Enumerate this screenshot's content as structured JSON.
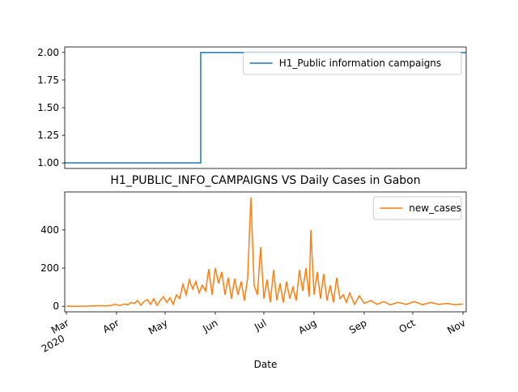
{
  "chart_data": [
    {
      "type": "line",
      "xlim": [
        -1,
        247
      ],
      "ylim": [
        0.95,
        2.05
      ],
      "yticks": [
        {
          "value": 1,
          "label": "1.00"
        },
        {
          "value": 1.25,
          "label": "1.25"
        },
        {
          "value": 1.5,
          "label": "1.50"
        },
        {
          "value": 1.75,
          "label": "1.75"
        },
        {
          "value": 2,
          "label": "2.00"
        }
      ],
      "legend": "upper right",
      "series": [
        {
          "name": "H1_Public information campaigns",
          "color": "#1f77b4",
          "x": [
            -1,
            83,
            83,
            247
          ],
          "values": [
            1,
            1,
            2,
            2
          ]
        }
      ]
    },
    {
      "type": "line",
      "title": "H1_PUBLIC_INFO_CAMPAIGNS VS Daily Cases in Gabon",
      "xlabel": "Date",
      "xlim": [
        -1,
        247
      ],
      "xticks": [
        {
          "value": 0,
          "label": "Mar\n2020"
        },
        {
          "value": 31,
          "label": "Apr"
        },
        {
          "value": 61,
          "label": "May"
        },
        {
          "value": 92,
          "label": "Jun"
        },
        {
          "value": 122,
          "label": "Jul"
        },
        {
          "value": 153,
          "label": "Aug"
        },
        {
          "value": 184,
          "label": "Sep"
        },
        {
          "value": 214,
          "label": "Oct"
        },
        {
          "value": 245,
          "label": "Nov"
        }
      ],
      "ylim": [
        -29,
        599
      ],
      "yticks": [
        0,
        200,
        400
      ],
      "legend": "upper right",
      "series": [
        {
          "name": "new_cases",
          "color": "#ff7f0e",
          "x": [
            0,
            10,
            14,
            20,
            25,
            28,
            30,
            33,
            36,
            38,
            40,
            42,
            44,
            46,
            48,
            50,
            52,
            54,
            56,
            58,
            60,
            62,
            64,
            66,
            68,
            70,
            72,
            74,
            76,
            78,
            80,
            82,
            84,
            86,
            88,
            90,
            92,
            94,
            96,
            98,
            100,
            102,
            104,
            106,
            108,
            110,
            112,
            114,
            116,
            118,
            120,
            122,
            124,
            126,
            128,
            130,
            132,
            134,
            136,
            138,
            140,
            142,
            144,
            146,
            148,
            150,
            151,
            153,
            155,
            157,
            159,
            161,
            163,
            165,
            167,
            169,
            171,
            173,
            175,
            178,
            181,
            184,
            188,
            192,
            196,
            200,
            205,
            210,
            215,
            220,
            225,
            230,
            235,
            240,
            245
          ],
          "values": [
            0,
            0,
            1,
            3,
            2,
            5,
            10,
            4,
            12,
            8,
            20,
            15,
            30,
            5,
            25,
            35,
            10,
            40,
            5,
            30,
            50,
            20,
            45,
            10,
            60,
            40,
            115,
            60,
            140,
            90,
            130,
            70,
            110,
            80,
            195,
            60,
            200,
            120,
            180,
            60,
            150,
            40,
            145,
            60,
            130,
            30,
            150,
            570,
            110,
            60,
            310,
            40,
            140,
            20,
            190,
            30,
            120,
            20,
            130,
            40,
            100,
            30,
            190,
            80,
            200,
            50,
            400,
            60,
            180,
            40,
            170,
            30,
            110,
            20,
            150,
            40,
            60,
            20,
            70,
            10,
            55,
            15,
            30,
            10,
            25,
            8,
            20,
            10,
            25,
            8,
            20,
            10,
            15,
            8,
            12
          ]
        }
      ]
    }
  ]
}
